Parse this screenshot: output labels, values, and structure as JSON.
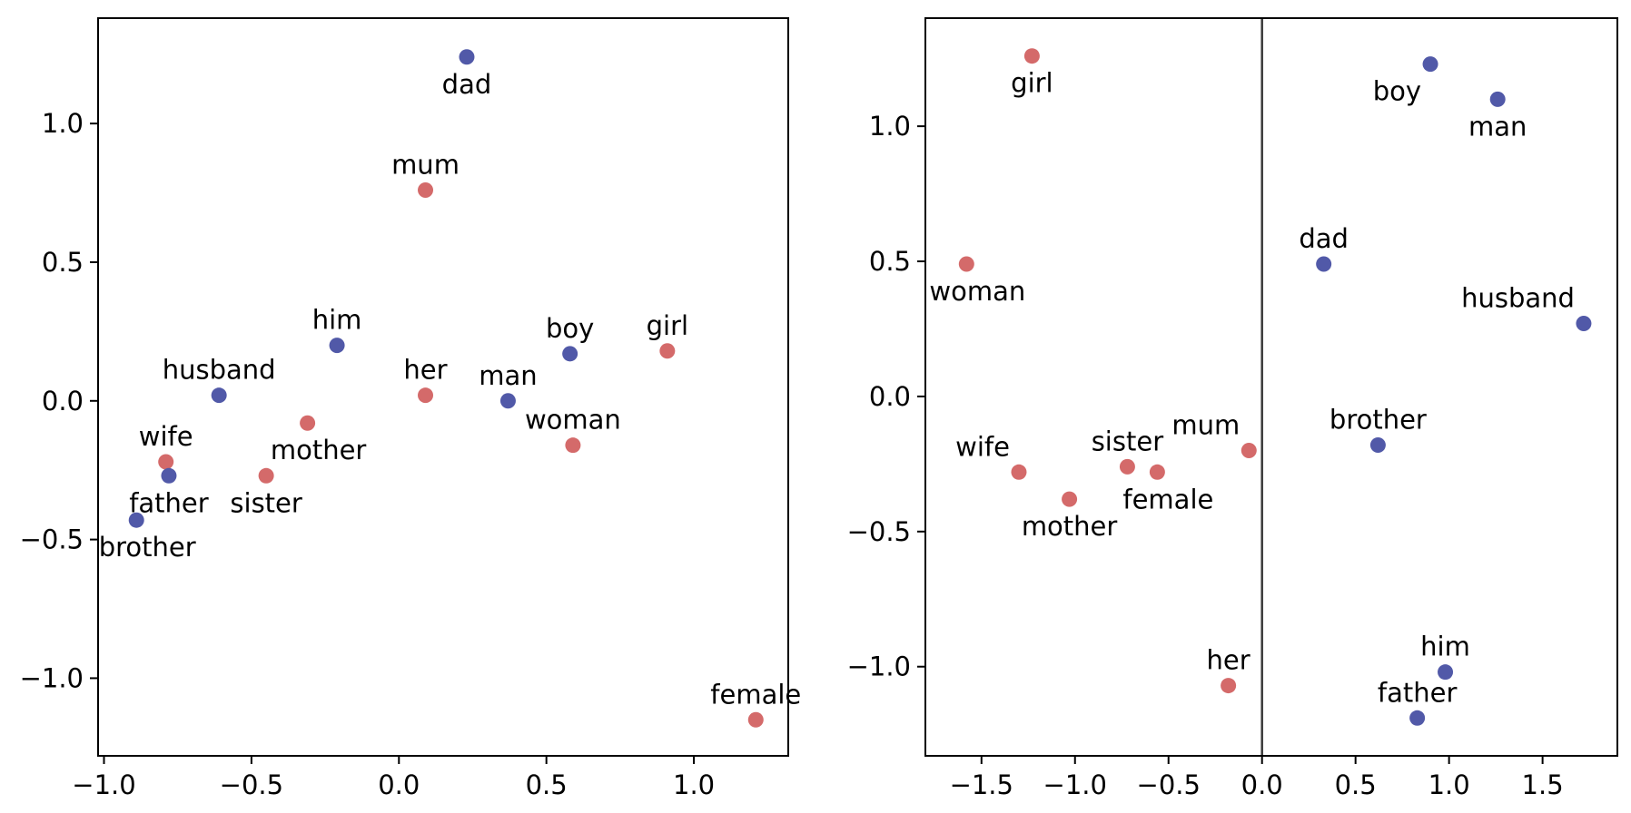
{
  "colors": {
    "male": "#5159a8",
    "female": "#d46a6a"
  },
  "chart_data": [
    {
      "type": "scatter",
      "title": "",
      "xlabel": "",
      "ylabel": "",
      "xlim": [
        -1.02,
        1.32
      ],
      "ylim": [
        -1.28,
        1.38
      ],
      "xticks": [
        -1.0,
        -0.5,
        0.0,
        0.5,
        1.0
      ],
      "xtick_labels": [
        "−1.0",
        "−0.5",
        "0.0",
        "0.5",
        "1.0"
      ],
      "yticks": [
        -1.0,
        -0.5,
        0.0,
        0.5,
        1.0
      ],
      "ytick_labels": [
        "−1.0",
        "−0.5",
        "0.0",
        "0.5",
        "1.0"
      ],
      "grid": false,
      "reference_line_x": null,
      "points": [
        {
          "label": "dad",
          "x": 0.23,
          "y": 1.24,
          "group": "male",
          "label_pos": "below"
        },
        {
          "label": "mum",
          "x": 0.09,
          "y": 0.76,
          "group": "female",
          "label_pos": "above"
        },
        {
          "label": "him",
          "x": -0.21,
          "y": 0.2,
          "group": "male",
          "label_pos": "above"
        },
        {
          "label": "boy",
          "x": 0.58,
          "y": 0.17,
          "group": "male",
          "label_pos": "above"
        },
        {
          "label": "girl",
          "x": 0.91,
          "y": 0.18,
          "group": "female",
          "label_pos": "above"
        },
        {
          "label": "husband",
          "x": -0.61,
          "y": 0.02,
          "group": "male",
          "label_pos": "above"
        },
        {
          "label": "her",
          "x": 0.09,
          "y": 0.02,
          "group": "female",
          "label_pos": "above"
        },
        {
          "label": "man",
          "x": 0.37,
          "y": 0.0,
          "group": "male",
          "label_pos": "above"
        },
        {
          "label": "mother",
          "x": -0.31,
          "y": -0.08,
          "group": "female",
          "label_pos": "below-right"
        },
        {
          "label": "woman",
          "x": 0.59,
          "y": -0.16,
          "group": "female",
          "label_pos": "above"
        },
        {
          "label": "wife",
          "x": -0.79,
          "y": -0.22,
          "group": "female",
          "label_pos": "above"
        },
        {
          "label": "father",
          "x": -0.78,
          "y": -0.27,
          "group": "male",
          "label_pos": "below"
        },
        {
          "label": "sister",
          "x": -0.45,
          "y": -0.27,
          "group": "female",
          "label_pos": "below"
        },
        {
          "label": "brother",
          "x": -0.89,
          "y": -0.43,
          "group": "male",
          "label_pos": "below-right"
        },
        {
          "label": "female",
          "x": 1.21,
          "y": -1.15,
          "group": "female",
          "label_pos": "above"
        }
      ]
    },
    {
      "type": "scatter",
      "title": "",
      "xlabel": "",
      "ylabel": "",
      "xlim": [
        -1.8,
        1.9
      ],
      "ylim": [
        -1.33,
        1.4
      ],
      "xticks": [
        -1.5,
        -1.0,
        -0.5,
        0.0,
        0.5,
        1.0,
        1.5
      ],
      "xtick_labels": [
        "−1.5",
        "−1.0",
        "−0.5",
        "0.0",
        "0.5",
        "1.0",
        "1.5"
      ],
      "yticks": [
        -1.0,
        -0.5,
        0.0,
        0.5,
        1.0
      ],
      "ytick_labels": [
        "−1.0",
        "−0.5",
        "0.0",
        "0.5",
        "1.0"
      ],
      "grid": false,
      "reference_line_x": 0.0,
      "points": [
        {
          "label": "girl",
          "x": -1.23,
          "y": 1.26,
          "group": "female",
          "label_pos": "below"
        },
        {
          "label": "boy",
          "x": 0.9,
          "y": 1.23,
          "group": "male",
          "label_pos": "below-left"
        },
        {
          "label": "man",
          "x": 1.26,
          "y": 1.1,
          "group": "male",
          "label_pos": "below"
        },
        {
          "label": "woman",
          "x": -1.58,
          "y": 0.49,
          "group": "female",
          "label_pos": "below-right"
        },
        {
          "label": "dad",
          "x": 0.33,
          "y": 0.49,
          "group": "male",
          "label_pos": "above"
        },
        {
          "label": "husband",
          "x": 1.72,
          "y": 0.27,
          "group": "male",
          "label_pos": "above-left"
        },
        {
          "label": "mum",
          "x": -0.07,
          "y": -0.2,
          "group": "female",
          "label_pos": "above-left"
        },
        {
          "label": "brother",
          "x": 0.62,
          "y": -0.18,
          "group": "male",
          "label_pos": "above"
        },
        {
          "label": "wife",
          "x": -1.3,
          "y": -0.28,
          "group": "female",
          "label_pos": "above-left"
        },
        {
          "label": "sister",
          "x": -0.72,
          "y": -0.26,
          "group": "female",
          "label_pos": "above"
        },
        {
          "label": "female",
          "x": -0.56,
          "y": -0.28,
          "group": "female",
          "label_pos": "below-right"
        },
        {
          "label": "mother",
          "x": -1.03,
          "y": -0.38,
          "group": "female",
          "label_pos": "below"
        },
        {
          "label": "her",
          "x": -0.18,
          "y": -1.07,
          "group": "female",
          "label_pos": "above"
        },
        {
          "label": "him",
          "x": 0.98,
          "y": -1.02,
          "group": "male",
          "label_pos": "above"
        },
        {
          "label": "father",
          "x": 0.83,
          "y": -1.19,
          "group": "male",
          "label_pos": "above"
        }
      ]
    }
  ]
}
